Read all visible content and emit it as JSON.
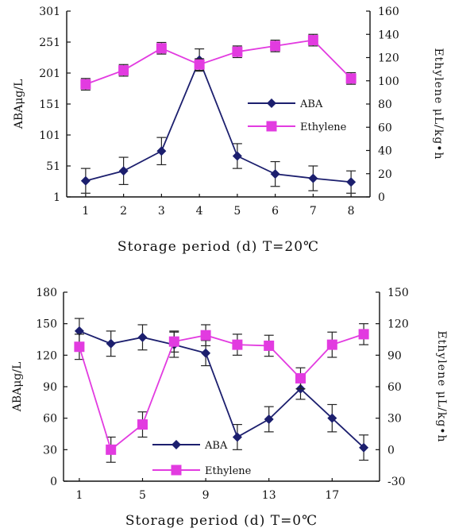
{
  "colors": {
    "aba": "#1c1f6e",
    "ethylene": "#e23be0",
    "axis": "#111111"
  },
  "chart_data": [
    {
      "type": "line",
      "xlabel": "Storage period (d) T=20℃",
      "ylabel_left": "ABAμg/L",
      "ylabel_right": "Ethylene μL/kg•h",
      "x_ticks": [
        "1",
        "2",
        "3",
        "4",
        "5",
        "6",
        "7",
        "8"
      ],
      "x": [
        1,
        2,
        3,
        4,
        5,
        6,
        7,
        8
      ],
      "xlim": [
        0.5,
        8.5
      ],
      "y_left_ticks": [
        "1",
        "51",
        "101",
        "151",
        "201",
        "251",
        "301"
      ],
      "y_left_tick_values": [
        1,
        51,
        101,
        151,
        201,
        251,
        301
      ],
      "ylim_left": [
        1,
        301
      ],
      "y_right_ticks": [
        "0",
        "20",
        "40",
        "60",
        "80",
        "100",
        "120",
        "140",
        "160"
      ],
      "y_right_tick_values": [
        0,
        20,
        40,
        60,
        80,
        100,
        120,
        140,
        160
      ],
      "ylim_right": [
        0,
        160
      ],
      "legend": {
        "placement": "center-right",
        "entries": [
          "ABA",
          "Ethylene"
        ]
      },
      "series": [
        {
          "name": "ABA",
          "axis": "left",
          "marker": "diamond",
          "values": [
            27,
            43,
            75,
            222,
            67,
            38,
            31,
            25
          ],
          "errors": [
            20,
            22,
            22,
            18,
            20,
            20,
            20,
            18
          ]
        },
        {
          "name": "Ethylene",
          "axis": "right",
          "marker": "square",
          "values": [
            97,
            109,
            128,
            114,
            125,
            130,
            135,
            102
          ],
          "errors": [
            5,
            5,
            5,
            5,
            5,
            5,
            5,
            5
          ]
        }
      ]
    },
    {
      "type": "line",
      "xlabel": "Storage period (d) T=0℃",
      "ylabel_left": "ABAμg/L",
      "ylabel_right": "Ethylene μL/kg•h",
      "x_ticks": [
        "1",
        "5",
        "9",
        "13",
        "17"
      ],
      "x_tick_values": [
        1,
        5,
        9,
        13,
        17
      ],
      "x": [
        1,
        3,
        5,
        7,
        9,
        11,
        13,
        15,
        17,
        19
      ],
      "xlim": [
        0,
        20
      ],
      "y_left_ticks": [
        "0",
        "30",
        "60",
        "90",
        "120",
        "150",
        "180"
      ],
      "y_left_tick_values": [
        0,
        30,
        60,
        90,
        120,
        150,
        180
      ],
      "ylim_left": [
        0,
        180
      ],
      "y_right_ticks": [
        "-30",
        "0",
        "30",
        "60",
        "90",
        "120",
        "150"
      ],
      "y_right_tick_values": [
        -30,
        0,
        30,
        60,
        90,
        120,
        150
      ],
      "ylim_right": [
        -30,
        150
      ],
      "legend": {
        "placement": "bottom-left",
        "entries": [
          "ABA",
          "Ethylene"
        ]
      },
      "series": [
        {
          "name": "ABA",
          "axis": "left",
          "marker": "diamond",
          "values": [
            143,
            131,
            137,
            130,
            122,
            42,
            59,
            88,
            60,
            32
          ],
          "errors": [
            12,
            12,
            12,
            12,
            12,
            12,
            12,
            10,
            13,
            12
          ]
        },
        {
          "name": "Ethylene",
          "axis": "right",
          "marker": "square",
          "values": [
            98,
            0,
            24,
            103,
            109,
            100,
            99,
            68,
            100,
            110
          ],
          "errors": [
            12,
            12,
            12,
            10,
            10,
            10,
            10,
            10,
            12,
            10
          ]
        }
      ]
    }
  ]
}
